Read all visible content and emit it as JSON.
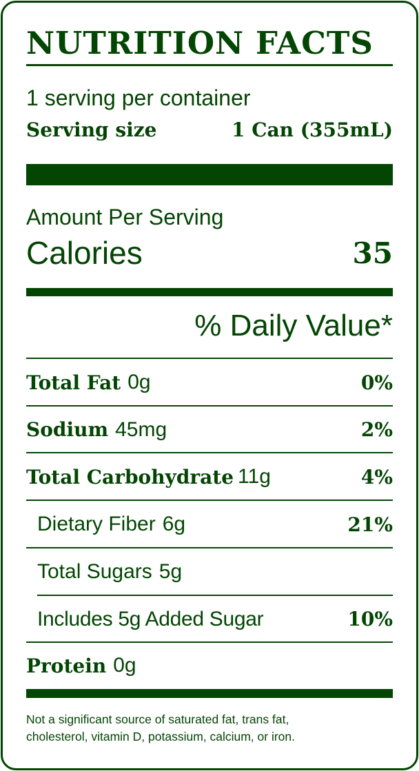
{
  "title": "NUTRITION FACTS",
  "servings_per_container": "1 serving per container",
  "serving_size_label": "Serving size",
  "serving_size_value": "1 Can (355mL)",
  "amount_per_serving": "Amount Per Serving",
  "calories_label": "Calories",
  "calories_value": "35",
  "daily_value_header": "% Daily Value*",
  "nutrients": [
    {
      "name": "Total Fat",
      "amount": "0g",
      "dv": "0%"
    },
    {
      "name": "Sodium",
      "amount": "45mg",
      "dv": "2%"
    },
    {
      "name": "Total Carbohydrate",
      "amount": "11g",
      "dv": "4%"
    },
    {
      "name": "Dietary Fiber",
      "amount": "6g",
      "dv": "21%"
    },
    {
      "name": "Total Sugars",
      "amount": "5g",
      "dv": ""
    },
    {
      "name": "Includes 5g Added Sugar",
      "amount": "",
      "dv": "10%"
    },
    {
      "name": "Protein",
      "amount": "0g",
      "dv": ""
    }
  ],
  "footnote_line1": "Not a significant source of saturated fat, trans fat,",
  "footnote_line2": "cholesterol, vitamin D, potassium, calcium, or iron.",
  "colors": {
    "primary": "#034503",
    "background": "#ffffff"
  }
}
